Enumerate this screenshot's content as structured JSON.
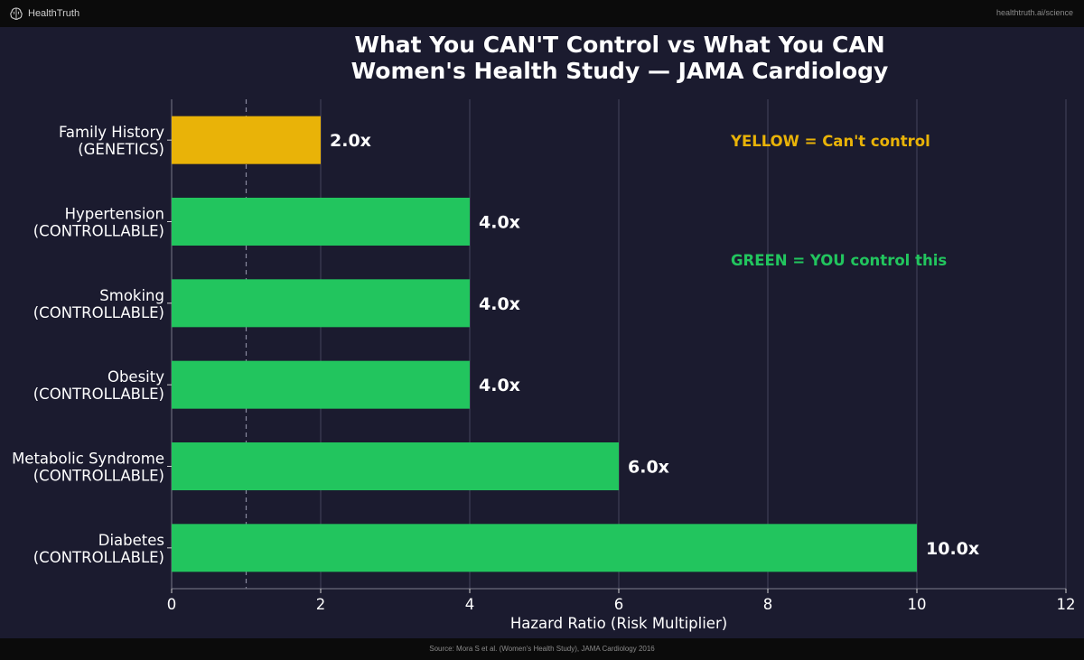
{
  "header": {
    "brand": "HealthTruth",
    "url": "healthtruth.ai/science"
  },
  "footer": {
    "source": "Source: Mora S et al. (Women's Health Study), JAMA Cardiology 2016"
  },
  "colors": {
    "background": "#1b1b2f",
    "uncontrollable": "#e9b308",
    "controllable": "#22c55e",
    "text": "#ffffff"
  },
  "chart_data": {
    "type": "bar",
    "orientation": "horizontal",
    "title_lines": [
      "What You CAN'T Control vs What You CAN",
      "Women's Health Study — JAMA Cardiology"
    ],
    "xlabel": "Hazard Ratio (Risk Multiplier)",
    "xlim": [
      0,
      12
    ],
    "xticks": [
      0,
      2,
      4,
      6,
      8,
      10,
      12
    ],
    "reference_line": 1,
    "grid": true,
    "categories": [
      [
        "Family History",
        "(GENETICS)"
      ],
      [
        "Hypertension",
        "(CONTROLLABLE)"
      ],
      [
        "Smoking",
        "(CONTROLLABLE)"
      ],
      [
        "Obesity",
        "(CONTROLLABLE)"
      ],
      [
        "Metabolic Syndrome",
        "(CONTROLLABLE)"
      ],
      [
        "Diabetes",
        "(CONTROLLABLE)"
      ]
    ],
    "values": [
      2.0,
      4.0,
      4.0,
      4.0,
      6.0,
      10.0
    ],
    "value_labels": [
      "2.0x",
      "4.0x",
      "4.0x",
      "4.0x",
      "6.0x",
      "10.0x"
    ],
    "groups": [
      "uncontrollable",
      "controllable",
      "controllable",
      "controllable",
      "controllable",
      "controllable"
    ],
    "annotations": [
      {
        "text": "YELLOW = Can't control",
        "group": "uncontrollable"
      },
      {
        "text": "GREEN = YOU control this",
        "group": "controllable"
      }
    ]
  }
}
